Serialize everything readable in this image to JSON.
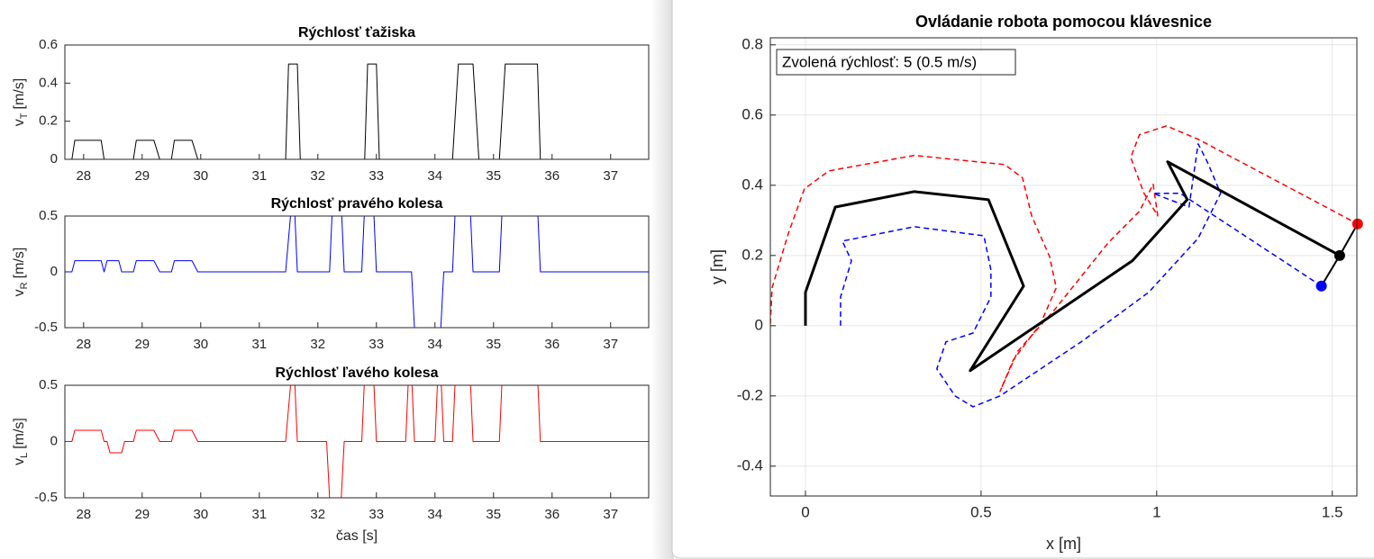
{
  "chart_data": [
    {
      "type": "line",
      "title": "Rýchlosť ťažiska",
      "ylabel": {
        "text": "v",
        "subscript": "T",
        "unit": "[m/s]"
      },
      "xlim": [
        27.68,
        37.65
      ],
      "xticks": [
        28,
        29,
        30,
        31,
        32,
        33,
        34,
        35,
        36,
        37
      ],
      "ylim": [
        0,
        0.6
      ],
      "yticks": [
        0,
        0.2,
        0.4,
        0.6
      ],
      "grid": false,
      "series": [
        {
          "color": "#000000",
          "x": [
            27.68,
            27.8,
            27.85,
            28.3,
            28.35,
            28.85,
            28.9,
            29.2,
            29.3,
            29.5,
            29.55,
            29.85,
            29.95,
            31.45,
            31.5,
            31.65,
            31.7,
            32.8,
            32.85,
            33.0,
            33.05,
            34.3,
            34.4,
            34.65,
            34.75,
            35.1,
            35.2,
            35.75,
            35.8,
            37.65
          ],
          "values": [
            0,
            0,
            0.1,
            0.1,
            0,
            0,
            0.1,
            0.1,
            0,
            0,
            0.1,
            0.1,
            0,
            0,
            0.5,
            0.5,
            0,
            0,
            0.5,
            0.5,
            0,
            0,
            0.5,
            0.5,
            0,
            0,
            0.5,
            0.5,
            0,
            0
          ]
        }
      ]
    },
    {
      "type": "line",
      "title": "Rýchlosť pravého kolesa",
      "ylabel": {
        "text": "v",
        "subscript": "R",
        "unit": "[m/s]"
      },
      "xlim": [
        27.68,
        37.65
      ],
      "xticks": [
        28,
        29,
        30,
        31,
        32,
        33,
        34,
        35,
        36,
        37
      ],
      "ylim": [
        -0.5,
        0.5
      ],
      "yticks": [
        -0.5,
        0,
        0.5
      ],
      "grid": false,
      "series": [
        {
          "color": "#0000ff",
          "x": [
            27.68,
            27.8,
            27.85,
            28.3,
            28.35,
            28.4,
            28.6,
            28.65,
            28.85,
            28.9,
            29.2,
            29.3,
            29.5,
            29.55,
            29.85,
            29.95,
            31.45,
            31.55,
            31.6,
            31.65,
            32.2,
            32.25,
            32.4,
            32.45,
            32.75,
            32.8,
            32.95,
            33.0,
            33.6,
            33.65,
            34.1,
            34.15,
            34.3,
            34.35,
            34.6,
            34.65,
            35.1,
            35.15,
            35.75,
            35.8,
            37.65
          ],
          "values": [
            0,
            0,
            0.1,
            0.1,
            0,
            0.1,
            0.1,
            0,
            0,
            0.1,
            0.1,
            0,
            0,
            0.1,
            0.1,
            0,
            0,
            0.6,
            0.6,
            0,
            0,
            0.6,
            0.6,
            0,
            0,
            0.6,
            0.6,
            0,
            0,
            -0.5,
            -0.5,
            0,
            0,
            0.6,
            0.6,
            0,
            0,
            0.6,
            0.6,
            0,
            0
          ]
        }
      ]
    },
    {
      "type": "line",
      "title": "Rýchlosť ľavého kolesa",
      "xlabel": "čas [s]",
      "ylabel": {
        "text": "v",
        "subscript": "L",
        "unit": "[m/s]"
      },
      "xlim": [
        27.68,
        37.65
      ],
      "xticks": [
        28,
        29,
        30,
        31,
        32,
        33,
        34,
        35,
        36,
        37
      ],
      "ylim": [
        -0.5,
        0.5
      ],
      "yticks": [
        -0.5,
        0,
        0.5
      ],
      "grid": false,
      "series": [
        {
          "color": "#ff0000",
          "x": [
            27.68,
            27.8,
            27.85,
            28.3,
            28.35,
            28.4,
            28.45,
            28.65,
            28.7,
            28.85,
            28.9,
            29.2,
            29.3,
            29.5,
            29.55,
            29.85,
            29.95,
            31.45,
            31.55,
            31.6,
            31.65,
            32.15,
            32.2,
            32.4,
            32.45,
            32.75,
            32.8,
            32.95,
            33.0,
            33.5,
            33.55,
            33.6,
            33.65,
            34.0,
            34.05,
            34.1,
            34.15,
            34.3,
            34.35,
            34.6,
            34.65,
            35.1,
            35.15,
            35.75,
            35.8,
            37.65
          ],
          "values": [
            0,
            0,
            0.1,
            0.1,
            0,
            0,
            -0.1,
            -0.1,
            0,
            0,
            0.1,
            0.1,
            0,
            0,
            0.1,
            0.1,
            0,
            0,
            0.6,
            0.6,
            0,
            0,
            -0.5,
            -0.5,
            0,
            0,
            0.6,
            0.6,
            0,
            0,
            0.6,
            0.6,
            0,
            0,
            0.6,
            0.6,
            0,
            0,
            0.6,
            0.6,
            0,
            0,
            0.6,
            0.6,
            0,
            0
          ]
        }
      ]
    },
    {
      "type": "line",
      "title": "Ovládanie robota pomocou klávesnice",
      "xlabel": "x [m]",
      "ylabel": "y [m]",
      "annotation": "Zvolená rýchlosť: 5 (0.5 m/s)",
      "xlim": [
        -0.1,
        1.57
      ],
      "xticks": [
        0,
        0.5,
        1,
        1.5
      ],
      "ylim": [
        -0.485,
        0.82
      ],
      "yticks": [
        -0.4,
        -0.2,
        0,
        0.2,
        0.4,
        0.6,
        0.8
      ],
      "grid": true,
      "series": [
        {
          "color": "#ff0000",
          "style": "dashed",
          "x": [
            -0.1,
            -0.095,
            -0.049,
            -0.003,
            0.067,
            0.31,
            0.567,
            0.618,
            0.644,
            0.695,
            0.714,
            0.669,
            0.592,
            0.554,
            0.605,
            0.708,
            0.862,
            0.951,
            0.99,
            1.003,
            0.964,
            0.926,
            0.951,
            1.028,
            1.118,
            1.572
          ],
          "values": [
            0.005,
            0.108,
            0.262,
            0.39,
            0.441,
            0.485,
            0.459,
            0.421,
            0.313,
            0.197,
            0.108,
            0.005,
            -0.097,
            -0.187,
            -0.072,
            0.044,
            0.236,
            0.326,
            0.403,
            0.313,
            0.377,
            0.479,
            0.544,
            0.569,
            0.531,
            0.29
          ]
        },
        {
          "color": "#0000ff",
          "style": "dashed",
          "x": [
            0.1,
            0.1,
            0.131,
            0.105,
            0.31,
            0.508,
            0.528,
            0.528,
            0.477,
            0.4,
            0.374,
            0.426,
            0.477,
            0.554,
            0.785,
            0.977,
            1.118,
            1.182,
            1.144,
            1.118,
            1.092,
            0.99,
            1.067,
            1.469
          ],
          "values": [
            0,
            0.082,
            0.185,
            0.241,
            0.282,
            0.256,
            0.159,
            0.082,
            -0.021,
            -0.046,
            -0.123,
            -0.2,
            -0.231,
            -0.2,
            -0.046,
            0.095,
            0.249,
            0.377,
            0.467,
            0.518,
            0.338,
            0.377,
            0.377,
            0.113
          ]
        },
        {
          "color": "#000000",
          "style": "solid",
          "width": 3,
          "x": [
            0,
            0,
            0.085,
            0.31,
            0.521,
            0.621,
            0.469,
            0.931,
            1.087,
            1.031,
            1.521
          ],
          "values": [
            0,
            0.095,
            0.338,
            0.382,
            0.359,
            0.113,
            -0.128,
            0.185,
            0.359,
            0.467,
            0.2
          ]
        },
        {
          "color": "#000000",
          "style": "solid",
          "width": 2,
          "x": [
            1.469,
            1.521,
            1.572
          ],
          "values": [
            0.113,
            0.2,
            0.29
          ]
        }
      ],
      "points": [
        {
          "x": 1.572,
          "y": 0.29,
          "color": "#ff0000"
        },
        {
          "x": 1.469,
          "y": 0.113,
          "color": "#0000ff"
        },
        {
          "x": 1.521,
          "y": 0.2,
          "color": "#000000"
        }
      ]
    }
  ]
}
